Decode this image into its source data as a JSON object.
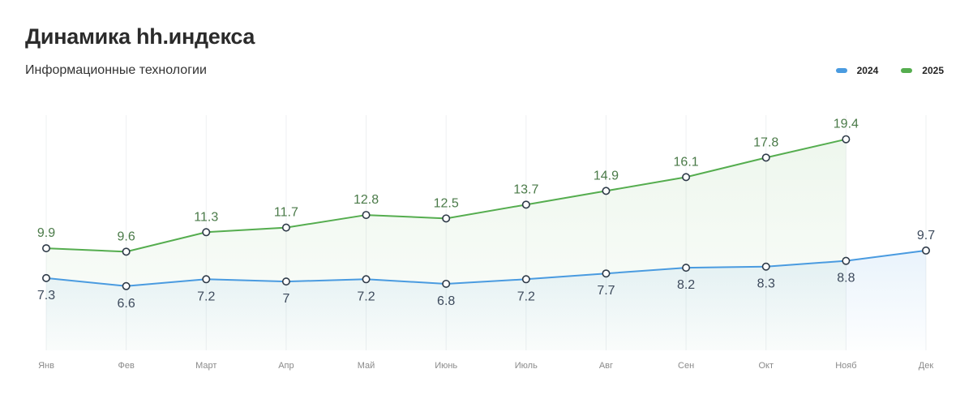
{
  "header": {
    "title": "Динамика hh.индекса",
    "subtitle": "Информационные технологии"
  },
  "legend": [
    {
      "label": "2024",
      "color": "#4a9be0"
    },
    {
      "label": "2025",
      "color": "#55ad4f"
    }
  ],
  "chart_data": {
    "type": "line",
    "title": "Динамика hh.индекса",
    "subtitle": "Информационные технологии",
    "categories": [
      "Янв",
      "Фев",
      "Март",
      "Апр",
      "Май",
      "Июнь",
      "Июль",
      "Авг",
      "Сен",
      "Окт",
      "Нояб",
      "Дек"
    ],
    "series": [
      {
        "name": "2024",
        "color": "#4a9be0",
        "label_color": "#3d4a5c",
        "label_position": "below",
        "values": [
          7.3,
          6.6,
          7.2,
          7,
          7.2,
          6.8,
          7.2,
          7.7,
          8.2,
          8.3,
          8.8,
          9.7
        ],
        "labels": [
          "7.3",
          "6.6",
          "7.2",
          "7",
          "7.2",
          "6.8",
          "7.2",
          "7.7",
          "8.2",
          "8.3",
          "8.8",
          "9.7"
        ]
      },
      {
        "name": "2025",
        "color": "#55ad4f",
        "label_color": "#4a7a48",
        "label_position": "above",
        "values": [
          9.9,
          9.6,
          11.3,
          11.7,
          12.8,
          12.5,
          13.7,
          14.9,
          16.1,
          17.8,
          19.4,
          null
        ],
        "labels": [
          "9.9",
          "9.6",
          "11.3",
          "11.7",
          "12.8",
          "12.5",
          "13.7",
          "14.9",
          "16.1",
          "17.8",
          "19.4",
          ""
        ]
      }
    ],
    "ylim": [
      1,
      21.5
    ],
    "area_fill": true,
    "grid": "vertical",
    "legend_position": "top-right",
    "xlabel": "",
    "ylabel": ""
  }
}
